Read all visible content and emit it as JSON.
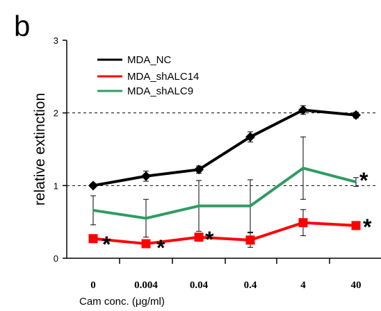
{
  "panel_label": "b",
  "chart_data": {
    "type": "line",
    "xlabel": "Cam conc. (μg/ml)",
    "ylabel": "relative extinction",
    "categories": [
      "0",
      "0.004",
      "0.04",
      "0.4",
      "4",
      "40"
    ],
    "ylim": [
      0,
      3
    ],
    "yticks": [
      "0",
      "1",
      "2",
      "3"
    ],
    "reference_lines": [
      1,
      2
    ],
    "legend_position": "top-left",
    "series": [
      {
        "name": "MDA_NC",
        "color": "#000000",
        "marker": "diamond",
        "values": [
          1.0,
          1.13,
          1.22,
          1.67,
          2.04,
          1.97
        ],
        "errors": [
          0.03,
          0.07,
          0.05,
          0.07,
          0.06,
          0.04
        ]
      },
      {
        "name": "MDA_shALC14",
        "color": "#ff0000",
        "marker": "square",
        "values": [
          0.27,
          0.2,
          0.29,
          0.25,
          0.49,
          0.45
        ],
        "errors": [
          0.05,
          0.05,
          0.05,
          0.1,
          0.18,
          0.05
        ]
      },
      {
        "name": "MDA_shALC9",
        "color": "#2e9c63",
        "marker": "none",
        "values": [
          0.66,
          0.55,
          0.72,
          0.72,
          1.24,
          1.05
        ],
        "errors": [
          0.2,
          0.26,
          0.35,
          0.36,
          0.43,
          0.06
        ]
      }
    ],
    "annotations": [
      {
        "text": "*",
        "category": "0"
      },
      {
        "text": "*",
        "category": "0.004"
      },
      {
        "text": "*",
        "category": "0.04"
      },
      {
        "text": "*",
        "category": "40",
        "series": "MDA_shALC9"
      },
      {
        "text": "*",
        "category": "40",
        "series": "MDA_shALC14"
      }
    ]
  }
}
